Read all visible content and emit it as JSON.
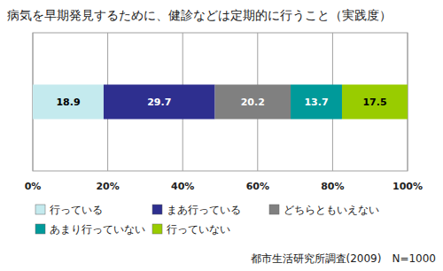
{
  "chart_data": {
    "type": "bar",
    "title": "病気を早期発見するために、健診などは定期的に行うこと（実践度）",
    "annotations": [
      "都市生活研究所調査(2009)　N=1000"
    ],
    "orientation": "horizontal",
    "stacked": true,
    "data_labels": true,
    "grid": true,
    "legend": "bottom",
    "tick_labels": "x",
    "categories": [
      null
    ],
    "xlim": [
      0,
      100
    ],
    "xticks": [
      {
        "value": 0,
        "label": "0%"
      },
      {
        "value": 20,
        "label": "20%"
      },
      {
        "value": 40,
        "label": "40%"
      },
      {
        "value": 60,
        "label": "60%"
      },
      {
        "value": 80,
        "label": "80%"
      },
      {
        "value": 100,
        "label": "100%"
      }
    ],
    "series": [
      {
        "name": "行っている",
        "color": "#c4eaee",
        "values": [
          18.9
        ]
      },
      {
        "name": "まあ行っている",
        "color": "#2e2f8f",
        "values": [
          29.7
        ]
      },
      {
        "name": "どちらともいえない",
        "color": "#808080",
        "values": [
          20.2
        ]
      },
      {
        "name": "あまり行っていない",
        "color": "#009a9a",
        "values": [
          13.7
        ]
      },
      {
        "name": "行っていない",
        "color": "#99cc00",
        "values": [
          17.5
        ]
      }
    ]
  }
}
